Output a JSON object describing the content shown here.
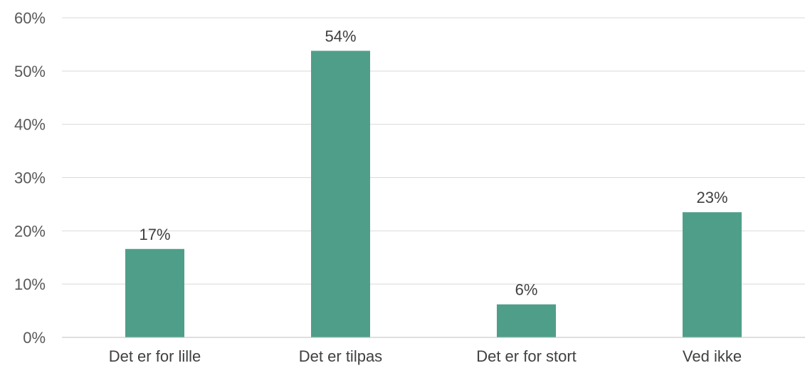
{
  "chart_data": {
    "type": "bar",
    "categories": [
      "Det er for lille",
      "Det er tilpas",
      "Det er for stort",
      "Ved ikke"
    ],
    "values": [
      16.6,
      53.8,
      6.2,
      23.5
    ],
    "data_labels": [
      "17%",
      "54%",
      "6%",
      "23%"
    ],
    "y_ticks": [
      "0%",
      "10%",
      "20%",
      "30%",
      "40%",
      "50%",
      "60%"
    ],
    "ylim": [
      0,
      60
    ],
    "grid": true,
    "bar_color": "#4f9e89",
    "title": "",
    "xlabel": "",
    "ylabel": ""
  }
}
